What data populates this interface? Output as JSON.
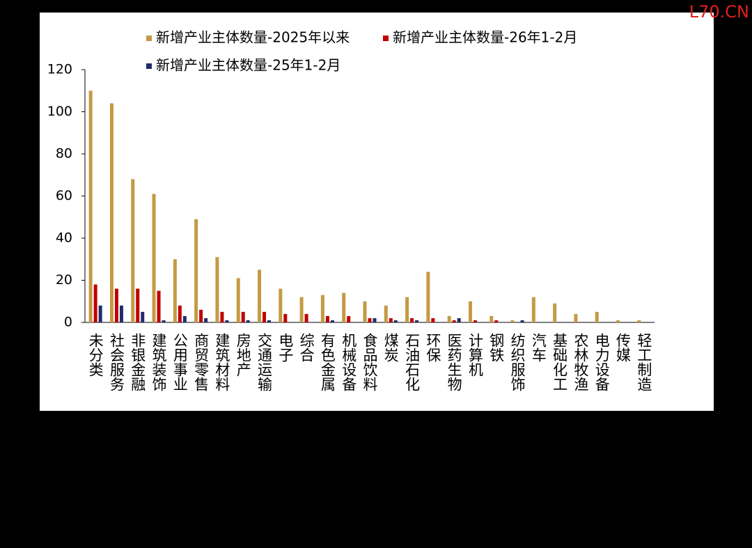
{
  "watermark": "L70.CN",
  "chart_data": {
    "type": "bar",
    "categories": [
      "未分类",
      "社会服务",
      "非银金融",
      "建筑装饰",
      "公用事业",
      "商贸零售",
      "建筑材料",
      "房地产",
      "交通运输",
      "电子",
      "综合",
      "有色金属",
      "机械设备",
      "食品饮料",
      "煤炭",
      "石油石化",
      "环保",
      "医药生物",
      "计算机",
      "钢铁",
      "纺织服饰",
      "汽车",
      "基础化工",
      "农林牧渔",
      "电力设备",
      "传媒",
      "轻工制造"
    ],
    "series": [
      {
        "name": "新增产业主体数量-2025年以来",
        "color": "#c49a45",
        "values": [
          110,
          104,
          68,
          61,
          30,
          49,
          31,
          21,
          25,
          16,
          12,
          13,
          14,
          10,
          8,
          12,
          24,
          3,
          10,
          3,
          1,
          12,
          9,
          4,
          5,
          1,
          1
        ]
      },
      {
        "name": "新增产业主体数量-26年1-2月",
        "color": "#c00000",
        "values": [
          18,
          16,
          16,
          15,
          8,
          6,
          5,
          5,
          5,
          4,
          4,
          3,
          3,
          2,
          2,
          2,
          2,
          1,
          1,
          1,
          0,
          0,
          0,
          0,
          0,
          0,
          0
        ]
      },
      {
        "name": "新增产业主体数量-25年1-2月",
        "color": "#1f2d6b",
        "values": [
          8,
          8,
          5,
          1,
          3,
          2,
          1,
          1,
          1,
          0,
          0,
          1,
          0,
          2,
          1,
          1,
          0,
          2,
          0,
          0,
          1,
          0,
          0,
          0,
          0,
          0,
          0
        ]
      }
    ],
    "ylim": [
      0,
      120
    ],
    "yticks": [
      0,
      20,
      40,
      60,
      80,
      100,
      120
    ],
    "grid": false
  }
}
